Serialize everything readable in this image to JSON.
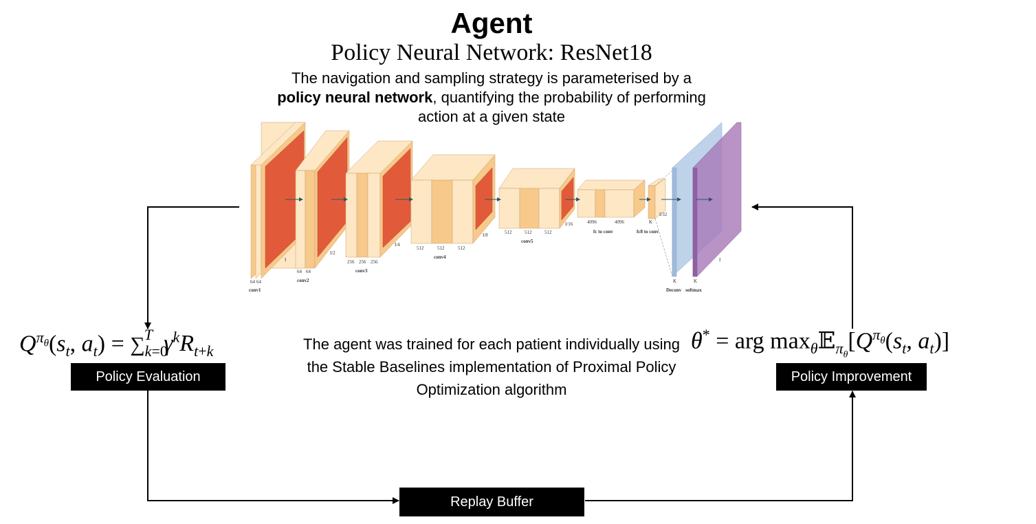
{
  "title": "Agent",
  "subtitle": "Policy Neural Network: ResNet18",
  "description": {
    "part1": "The navigation and sampling strategy is parameterised by a ",
    "bold": "policy neural network",
    "part2": ", quantifying the probability of performing action at a given state"
  },
  "network": {
    "layers": [
      {
        "name": "conv1",
        "channels": [
          "64",
          "64"
        ],
        "size": "I"
      },
      {
        "name": "conv2",
        "channels": [
          "64",
          "64"
        ],
        "size": "I/2"
      },
      {
        "name": "conv3",
        "channels": [
          "256",
          "256",
          "256"
        ],
        "size": "I/4"
      },
      {
        "name": "conv4",
        "channels": [
          "512",
          "512",
          "512"
        ],
        "size": "I/8"
      },
      {
        "name": "conv5",
        "channels": [
          "512",
          "512",
          "512"
        ],
        "size": "I/16"
      },
      {
        "name": "fc to conv",
        "channels": [
          "4096",
          "4096"
        ],
        "size": ""
      },
      {
        "name": "fc8 to conv",
        "channels": [
          "K"
        ],
        "size": "I/32"
      },
      {
        "name": "Deconv",
        "channels": [
          "K"
        ],
        "size": ""
      },
      {
        "name": "softmax",
        "channels": [
          "K"
        ],
        "size": "I"
      }
    ]
  },
  "policy_evaluation": {
    "label": "Policy Evaluation",
    "formula": "Q^{πθ}(s_t, a_t) = Σ_{k=0}^{T} γ^k R_{t+k}"
  },
  "policy_improvement": {
    "label": "Policy Improvement",
    "formula": "θ* = arg max_θ E_{πθ}[Q^{πθ}(s_t, a_t)]"
  },
  "replay_buffer": {
    "label": "Replay Buffer"
  },
  "center_text": "The agent was trained for each patient individually using the Stable Baselines implementation of Proximal Policy Optimization algorithm",
  "colors": {
    "light_orange": "#fde7c4",
    "mid_orange": "#f9c98a",
    "dark_orange": "#e15b3b",
    "blue": "#b3cbe6",
    "purple": "#a878b8",
    "arrow": "#000000"
  }
}
